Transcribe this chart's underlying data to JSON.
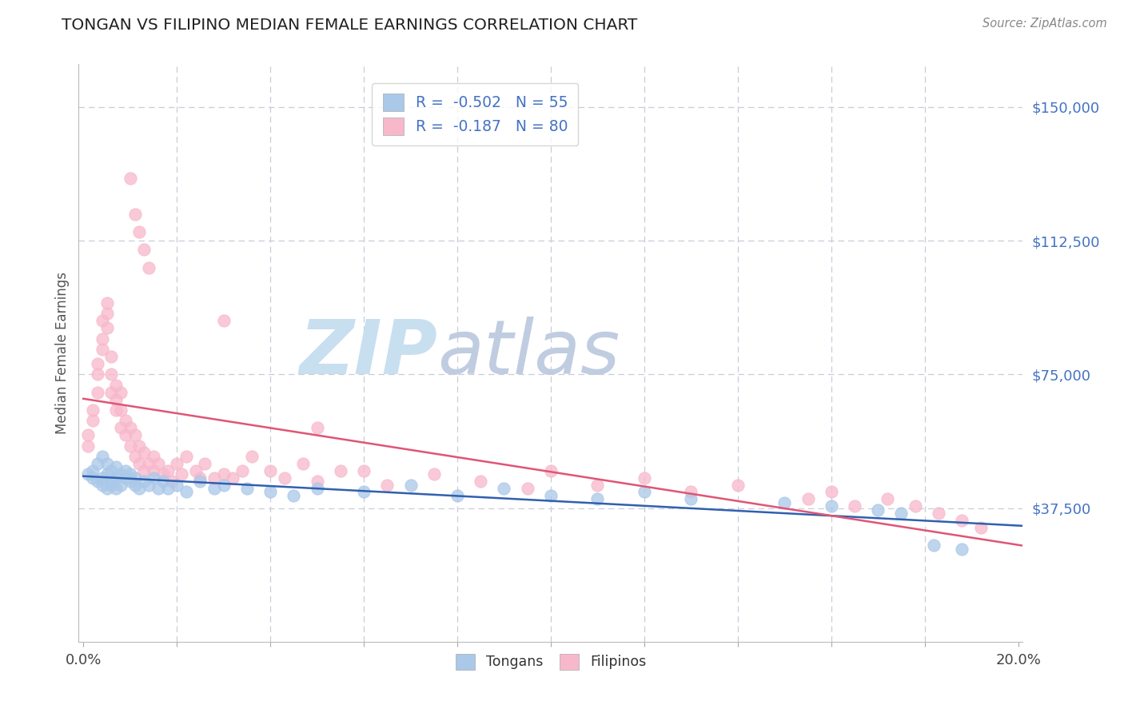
{
  "title": "TONGAN VS FILIPINO MEDIAN FEMALE EARNINGS CORRELATION CHART",
  "source": "Source: ZipAtlas.com",
  "ylabel": "Median Female Earnings",
  "xlim": [
    -0.001,
    0.201
  ],
  "ylim": [
    0,
    162000
  ],
  "ytick_vals": [
    37500,
    75000,
    112500,
    150000
  ],
  "ytick_labels": [
    "$37,500",
    "$75,000",
    "$112,500",
    "$150,000"
  ],
  "xtick_major": [
    0.0,
    0.2
  ],
  "xtick_major_labels": [
    "0.0%",
    "20.0%"
  ],
  "xtick_minor": [
    0.02,
    0.04,
    0.06,
    0.08,
    0.1,
    0.12,
    0.14,
    0.16,
    0.18
  ],
  "tongan_R": -0.502,
  "tongan_N": 55,
  "filipino_R": -0.187,
  "filipino_N": 80,
  "tongan_scatter_color": "#aac8e8",
  "filipino_scatter_color": "#f8b8cc",
  "tongan_line_color": "#3060b0",
  "filipino_line_color": "#e05575",
  "ytick_color": "#4472C4",
  "title_color": "#222222",
  "source_color": "#888888",
  "grid_color": "#c8cdd8",
  "background_color": "#ffffff",
  "watermark_zip_color": "#d8e8f4",
  "watermark_atlas_color": "#d0d8e8",
  "tongan_x": [
    0.001,
    0.002,
    0.002,
    0.003,
    0.003,
    0.004,
    0.004,
    0.004,
    0.005,
    0.005,
    0.005,
    0.006,
    0.006,
    0.006,
    0.007,
    0.007,
    0.007,
    0.008,
    0.008,
    0.009,
    0.009,
    0.01,
    0.01,
    0.011,
    0.011,
    0.012,
    0.013,
    0.014,
    0.015,
    0.016,
    0.017,
    0.018,
    0.02,
    0.022,
    0.025,
    0.028,
    0.03,
    0.035,
    0.04,
    0.045,
    0.05,
    0.06,
    0.07,
    0.08,
    0.09,
    0.1,
    0.11,
    0.12,
    0.13,
    0.15,
    0.16,
    0.17,
    0.175,
    0.182,
    0.188
  ],
  "tongan_y": [
    47000,
    46000,
    48000,
    45000,
    50000,
    44000,
    52000,
    46000,
    43000,
    47000,
    50000,
    45000,
    48000,
    44000,
    46000,
    49000,
    43000,
    47000,
    44000,
    46000,
    48000,
    45000,
    47000,
    44000,
    46000,
    43000,
    45000,
    44000,
    46000,
    43000,
    45000,
    43000,
    44000,
    42000,
    45000,
    43000,
    44000,
    43000,
    42000,
    41000,
    43000,
    42000,
    44000,
    41000,
    43000,
    41000,
    40000,
    42000,
    40000,
    39000,
    38000,
    37000,
    36000,
    27000,
    26000
  ],
  "filipino_x": [
    0.001,
    0.001,
    0.002,
    0.002,
    0.003,
    0.003,
    0.003,
    0.004,
    0.004,
    0.004,
    0.005,
    0.005,
    0.005,
    0.006,
    0.006,
    0.006,
    0.007,
    0.007,
    0.007,
    0.008,
    0.008,
    0.008,
    0.009,
    0.009,
    0.01,
    0.01,
    0.011,
    0.011,
    0.012,
    0.012,
    0.013,
    0.013,
    0.014,
    0.015,
    0.015,
    0.016,
    0.017,
    0.018,
    0.019,
    0.02,
    0.021,
    0.022,
    0.024,
    0.025,
    0.026,
    0.028,
    0.03,
    0.032,
    0.034,
    0.036,
    0.04,
    0.043,
    0.047,
    0.05,
    0.055,
    0.06,
    0.065,
    0.075,
    0.085,
    0.095,
    0.1,
    0.11,
    0.12,
    0.13,
    0.14,
    0.155,
    0.16,
    0.165,
    0.172,
    0.178,
    0.183,
    0.188,
    0.192,
    0.01,
    0.011,
    0.012,
    0.013,
    0.014,
    0.03,
    0.05
  ],
  "filipino_y": [
    55000,
    58000,
    62000,
    65000,
    70000,
    75000,
    78000,
    82000,
    85000,
    90000,
    92000,
    95000,
    88000,
    80000,
    75000,
    70000,
    68000,
    65000,
    72000,
    60000,
    65000,
    70000,
    58000,
    62000,
    55000,
    60000,
    52000,
    58000,
    50000,
    55000,
    48000,
    53000,
    50000,
    52000,
    48000,
    50000,
    47000,
    48000,
    45000,
    50000,
    47000,
    52000,
    48000,
    46000,
    50000,
    46000,
    47000,
    46000,
    48000,
    52000,
    48000,
    46000,
    50000,
    45000,
    48000,
    48000,
    44000,
    47000,
    45000,
    43000,
    48000,
    44000,
    46000,
    42000,
    44000,
    40000,
    42000,
    38000,
    40000,
    38000,
    36000,
    34000,
    32000,
    130000,
    120000,
    115000,
    110000,
    105000,
    90000,
    60000
  ]
}
